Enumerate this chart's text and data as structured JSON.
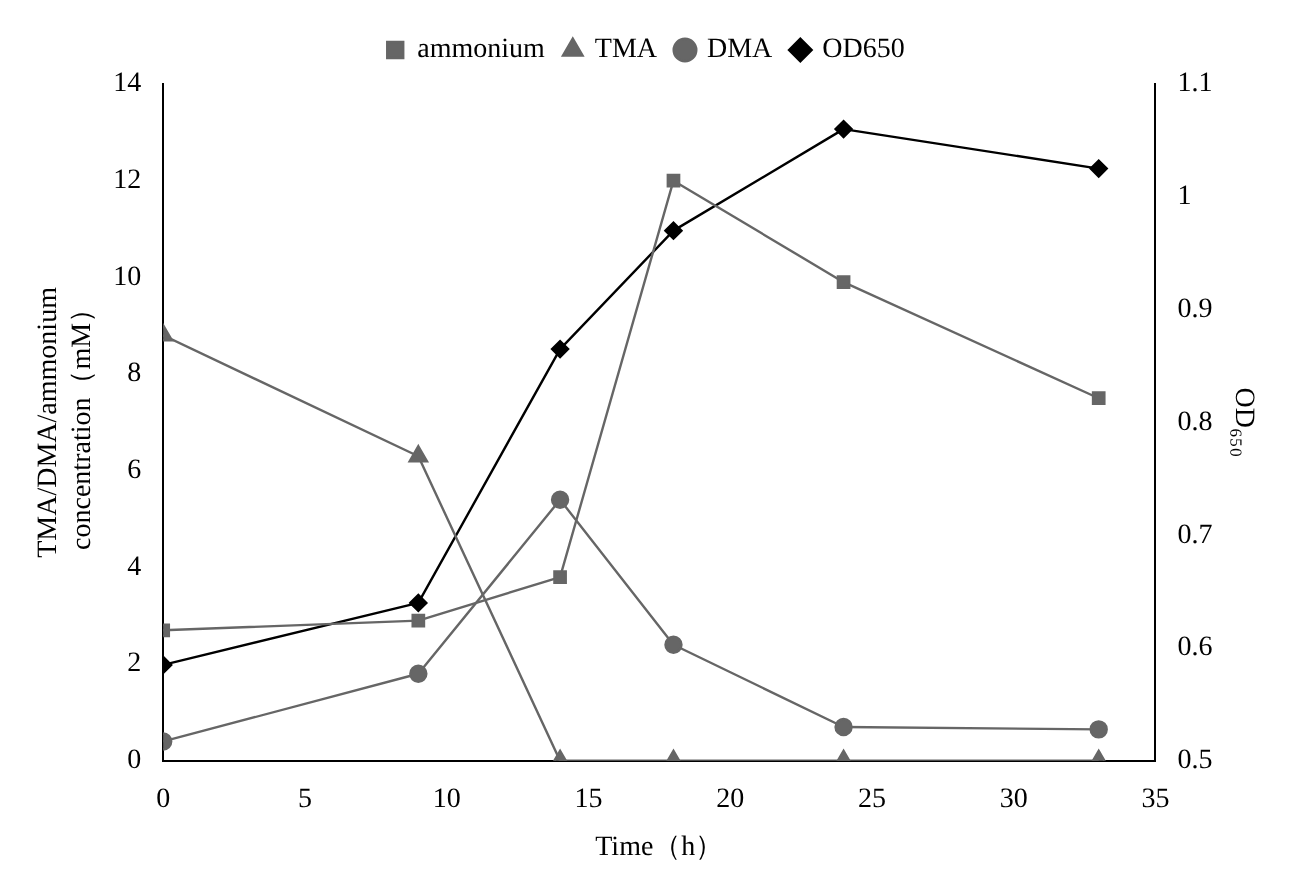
{
  "chart_data": {
    "type": "line",
    "xlabel": "Time（h）",
    "ylabel": "TMA/DMA/ammonium concentration（mM）",
    "y2label": "OD₆₅₀",
    "x": [
      0,
      9,
      14,
      18,
      24,
      33
    ],
    "xlim": [
      0,
      35
    ],
    "xticks": [
      0,
      5,
      10,
      15,
      20,
      25,
      30,
      35
    ],
    "ylim": [
      0,
      14
    ],
    "yticks": [
      0,
      2,
      4,
      6,
      8,
      10,
      12,
      14
    ],
    "y2lim": [
      0.5,
      1.1
    ],
    "y2ticks": [
      0.5,
      0.6,
      0.7,
      0.8,
      0.9,
      1,
      1.1
    ],
    "grid": false,
    "legend": "top",
    "series": [
      {
        "name": "ammonium",
        "color": "#666666",
        "marker": "square",
        "values": [
          2.7,
          2.9,
          3.8,
          12,
          9.9,
          7.5
        ]
      },
      {
        "name": "TMA",
        "color": "#666666",
        "marker": "triangle",
        "values": [
          8.8,
          6.3,
          0,
          0,
          0,
          0
        ]
      },
      {
        "name": "DMA",
        "color": "#666666",
        "marker": "circle",
        "values": [
          0.4,
          1.8,
          5.4,
          2.4,
          0.7,
          0.65
        ]
      },
      {
        "name": "OD650",
        "color": "#000000",
        "marker": "diamond",
        "axis": "y2",
        "values": [
          0.585,
          0.64,
          0.865,
          0.97,
          1.06,
          1.025
        ]
      }
    ]
  }
}
